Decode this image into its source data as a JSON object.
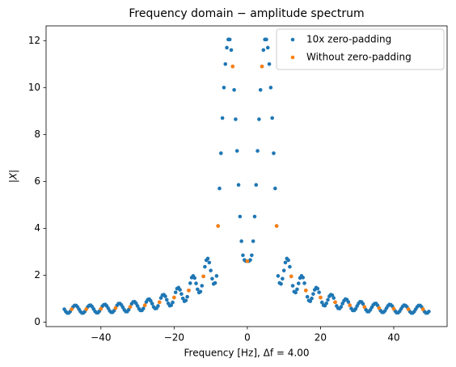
{
  "chart_data": {
    "type": "scatter",
    "title": "Frequency domain − amplitude spectrum",
    "xlabel": "Frequency [Hz], Δf = 4.00",
    "ylabel": "|X|",
    "xlim": [
      -54.98,
      54.58
    ],
    "ylim": [
      -0.19,
      12.63
    ],
    "xticks": [
      {
        "value": -40,
        "label": "−40"
      },
      {
        "value": -20,
        "label": "−20"
      },
      0,
      20,
      40
    ],
    "yticks": [
      0,
      2,
      4,
      6,
      8,
      10,
      12
    ],
    "grid": false,
    "legend": "upper right",
    "series": [
      {
        "name": "10x zero-padding",
        "color": "#1f77b4",
        "x": [
          -50,
          -49.6,
          -49.2,
          -48.8,
          -48.4,
          -48,
          -47.6,
          -47.2,
          -46.8,
          -46.4,
          -46,
          -45.6,
          -45.2,
          -44.8,
          -44.4,
          -44,
          -43.6,
          -43.2,
          -42.8,
          -42.4,
          -42,
          -41.6,
          -41.2,
          -40.8,
          -40.4,
          -40,
          -39.6,
          -39.2,
          -38.8,
          -38.4,
          -38,
          -37.6,
          -37.2,
          -36.8,
          -36.4,
          -36,
          -35.6,
          -35.2,
          -34.8,
          -34.4,
          -34,
          -33.6,
          -33.2,
          -32.8,
          -32.4,
          -32,
          -31.6,
          -31.2,
          -30.8,
          -30.4,
          -30,
          -29.6,
          -29.2,
          -28.8,
          -28.4,
          -28,
          -27.6,
          -27.2,
          -26.8,
          -26.4,
          -26,
          -25.6,
          -25.2,
          -24.8,
          -24.4,
          -24,
          -23.6,
          -23.2,
          -22.8,
          -22.4,
          -22,
          -21.6,
          -21.2,
          -20.8,
          -20.4,
          -20,
          -19.6,
          -19.2,
          -18.8,
          -18.4,
          -18,
          -17.6,
          -17.2,
          -16.8,
          -16.4,
          -16,
          -15.6,
          -15.2,
          -14.8,
          -14.4,
          -14,
          -13.6,
          -13.2,
          -12.8,
          -12.4,
          -12,
          -11.6,
          -11.2,
          -10.8,
          -10.4,
          -10,
          -9.6,
          -9.2,
          -8.8,
          -8.4,
          -8,
          -7.6,
          -7.2,
          -6.8,
          -6.4,
          -6,
          -5.6,
          -5.2,
          -4.8,
          -4.4,
          -4,
          -3.6,
          -3.2,
          -2.8,
          -2.4,
          -2,
          -1.6,
          -1.2,
          -0.8,
          -0.4,
          0,
          0.4,
          0.8,
          1.2,
          1.6,
          2,
          2.4,
          2.8,
          3.2,
          3.6,
          4,
          4.4,
          4.8,
          5.2,
          5.6,
          6,
          6.4,
          6.8,
          7.2,
          7.6,
          8,
          8.4,
          8.8,
          9.2,
          9.6,
          10,
          10.4,
          10.8,
          11.2,
          11.6,
          12,
          12.4,
          12.8,
          13.2,
          13.6,
          14,
          14.4,
          14.8,
          15.2,
          15.6,
          16,
          16.4,
          16.8,
          17.2,
          17.6,
          18,
          18.4,
          18.8,
          19.2,
          19.6,
          20,
          20.4,
          20.8,
          21.2,
          21.6,
          22,
          22.4,
          22.8,
          23.2,
          23.6,
          24,
          24.4,
          24.8,
          25.2,
          25.6,
          26,
          26.4,
          26.8,
          27.2,
          27.6,
          28,
          28.4,
          28.8,
          29.2,
          29.6,
          30,
          30.4,
          30.8,
          31.2,
          31.6,
          32,
          32.4,
          32.8,
          33.2,
          33.6,
          34,
          34.4,
          34.8,
          35.2,
          35.6,
          36,
          36.4,
          36.8,
          37.2,
          37.6,
          38,
          38.4,
          38.8,
          39.2,
          39.6,
          40,
          40.4,
          40.8,
          41.2,
          41.6,
          42,
          42.4,
          42.8,
          43.2,
          43.6,
          44,
          44.4,
          44.8,
          45.2,
          45.6,
          46,
          46.4,
          46.8,
          47.2,
          47.6,
          48,
          48.4,
          48.8,
          49.2,
          49.6
        ],
        "values": [
          0.55,
          0.45,
          0.39,
          0.39,
          0.45,
          0.55,
          0.65,
          0.71,
          0.71,
          0.65,
          0.55,
          0.45,
          0.39,
          0.39,
          0.45,
          0.55,
          0.65,
          0.71,
          0.72,
          0.66,
          0.56,
          0.46,
          0.4,
          0.4,
          0.47,
          0.57,
          0.68,
          0.74,
          0.75,
          0.69,
          0.59,
          0.48,
          0.42,
          0.42,
          0.49,
          0.6,
          0.71,
          0.79,
          0.79,
          0.73,
          0.63,
          0.52,
          0.45,
          0.45,
          0.53,
          0.65,
          0.78,
          0.86,
          0.87,
          0.8,
          0.69,
          0.57,
          0.5,
          0.5,
          0.58,
          0.72,
          0.86,
          0.96,
          0.98,
          0.91,
          0.79,
          0.65,
          0.58,
          0.59,
          0.69,
          0.85,
          1.03,
          1.15,
          1.17,
          1.1,
          0.95,
          0.8,
          0.7,
          0.72,
          0.84,
          1.05,
          1.27,
          1.43,
          1.47,
          1.38,
          1.2,
          1.01,
          0.89,
          0.92,
          1.08,
          1.35,
          1.66,
          1.9,
          1.97,
          1.88,
          1.65,
          1.4,
          1.26,
          1.3,
          1.55,
          1.95,
          2.36,
          2.64,
          2.71,
          2.54,
          2.2,
          1.85,
          1.63,
          1.67,
          1.97,
          4.1,
          5.7,
          7.2,
          8.7,
          10.0,
          11.0,
          11.7,
          12.05,
          12.05,
          11.6,
          10.9,
          9.9,
          8.65,
          7.3,
          5.85,
          4.5,
          3.45,
          2.85,
          2.65,
          2.6,
          2.6,
          2.6,
          2.65,
          2.85,
          3.45,
          4.5,
          5.85,
          7.3,
          8.65,
          9.9,
          10.9,
          11.6,
          12.05,
          12.05,
          11.7,
          11.0,
          10.0,
          8.7,
          7.2,
          5.7,
          4.1,
          1.97,
          1.67,
          1.63,
          1.85,
          2.2,
          2.54,
          2.71,
          2.64,
          2.36,
          1.95,
          1.55,
          1.3,
          1.26,
          1.4,
          1.65,
          1.88,
          1.97,
          1.9,
          1.66,
          1.35,
          1.08,
          0.92,
          0.89,
          1.01,
          1.2,
          1.38,
          1.47,
          1.43,
          1.27,
          1.05,
          0.84,
          0.72,
          0.7,
          0.8,
          0.95,
          1.1,
          1.17,
          1.15,
          1.03,
          0.85,
          0.69,
          0.59,
          0.58,
          0.65,
          0.79,
          0.91,
          0.98,
          0.96,
          0.86,
          0.72,
          0.58,
          0.5,
          0.5,
          0.57,
          0.69,
          0.8,
          0.87,
          0.86,
          0.78,
          0.65,
          0.53,
          0.45,
          0.45,
          0.52,
          0.63,
          0.73,
          0.79,
          0.79,
          0.71,
          0.6,
          0.49,
          0.42,
          0.42,
          0.48,
          0.59,
          0.69,
          0.75,
          0.74,
          0.68,
          0.57,
          0.47,
          0.4,
          0.4,
          0.46,
          0.56,
          0.66,
          0.72,
          0.71,
          0.65,
          0.55,
          0.45,
          0.39,
          0.39,
          0.45,
          0.55,
          0.65,
          0.71,
          0.71,
          0.65,
          0.55,
          0.45,
          0.39,
          0.39,
          0.45
        ]
      },
      {
        "name": "Without zero-padding",
        "color": "#ff7f0e",
        "x": [
          -48,
          -44,
          -40,
          -36,
          -32,
          -28,
          -24,
          -20,
          -16,
          -12,
          -8,
          -4,
          0,
          4,
          8,
          12,
          16,
          20,
          24,
          28,
          32,
          36,
          40,
          44,
          48
        ],
        "values": [
          0.55,
          0.55,
          0.57,
          0.6,
          0.65,
          0.72,
          0.85,
          1.05,
          1.35,
          1.95,
          4.1,
          10.9,
          2.6,
          10.9,
          4.1,
          1.95,
          1.35,
          1.05,
          0.85,
          0.72,
          0.65,
          0.6,
          0.57,
          0.55,
          0.55
        ]
      }
    ]
  }
}
